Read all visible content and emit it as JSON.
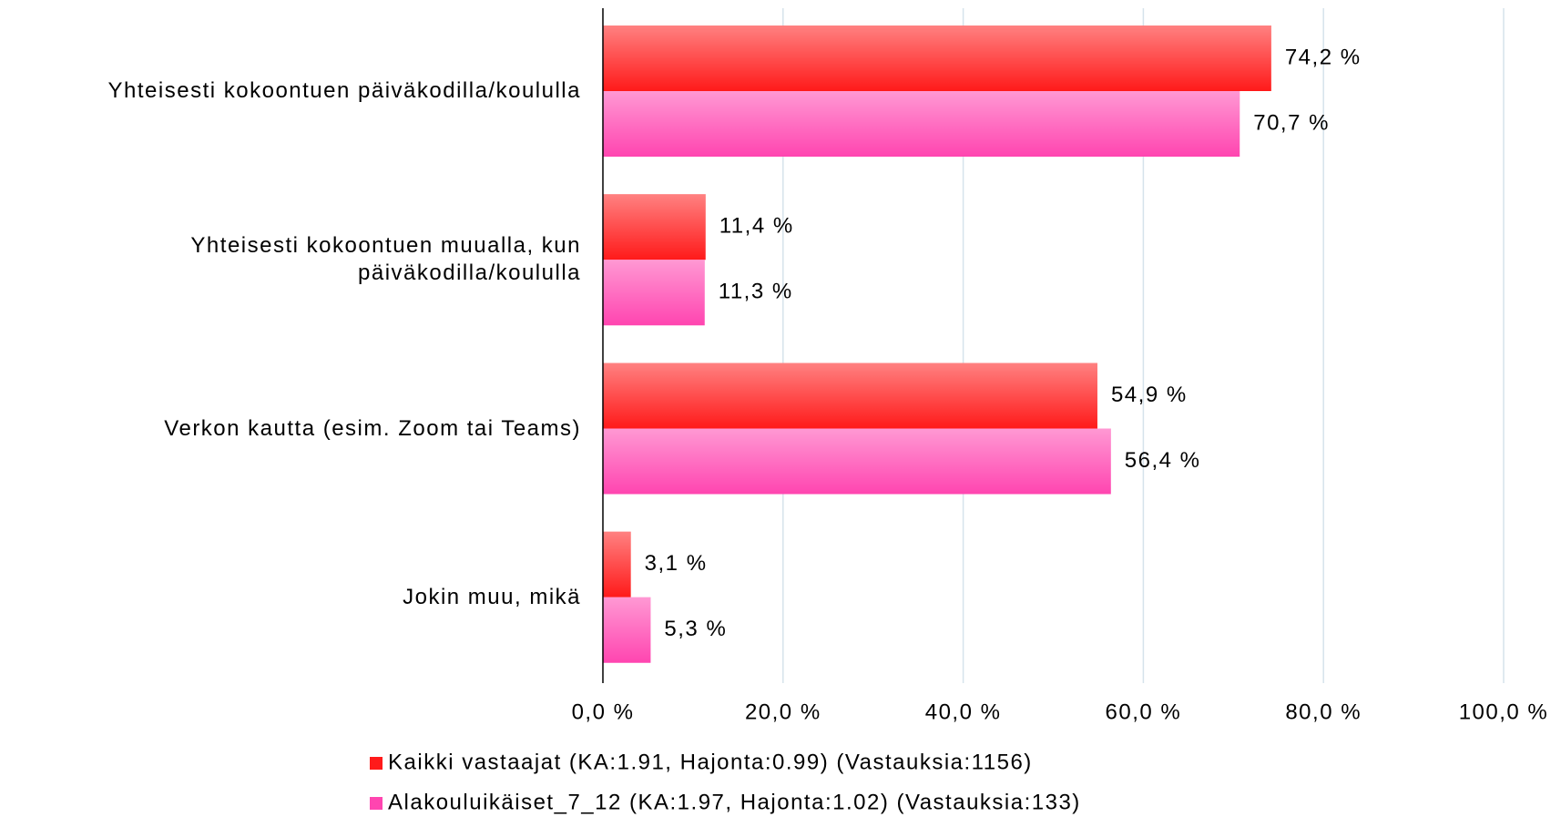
{
  "chart_data": {
    "type": "barh",
    "categories": [
      "Yhteisesti kokoontuen päiväkodilla/koululla",
      "Yhteisesti kokoontuen muualla, kun päiväkodilla/koululla",
      "Verkon kautta (esim. Zoom tai Teams)",
      "Jokin muu, mikä"
    ],
    "series": [
      {
        "name": "Kaikki vastaajat (KA:1.91, Hajonta:0.99) (Vastauksia:1156)",
        "color": "#ff1a1a",
        "values": [
          74.2,
          11.4,
          54.9,
          3.1
        ],
        "value_labels": [
          "74,2 %",
          "11,4 %",
          "54,9 %",
          "3,1 %"
        ]
      },
      {
        "name": "Alakouluikäiset_7_12 (KA:1.97, Hajonta:1.02) (Vastauksia:133)",
        "color": "#ff45b0",
        "values": [
          70.7,
          11.3,
          56.4,
          5.3
        ],
        "value_labels": [
          "70,7 %",
          "11,3 %",
          "56,4 %",
          "5,3 %"
        ]
      }
    ],
    "xlim": [
      0,
      100
    ],
    "xticks": [
      {
        "value": 0,
        "label": "0,0 %"
      },
      {
        "value": 20,
        "label": "20,0 %"
      },
      {
        "value": 40,
        "label": "40,0 %"
      },
      {
        "value": 60,
        "label": "60,0 %"
      },
      {
        "value": 80,
        "label": "80,0 %"
      },
      {
        "value": 100,
        "label": "100,0 %"
      }
    ],
    "grid": true,
    "legend": "bottom"
  }
}
